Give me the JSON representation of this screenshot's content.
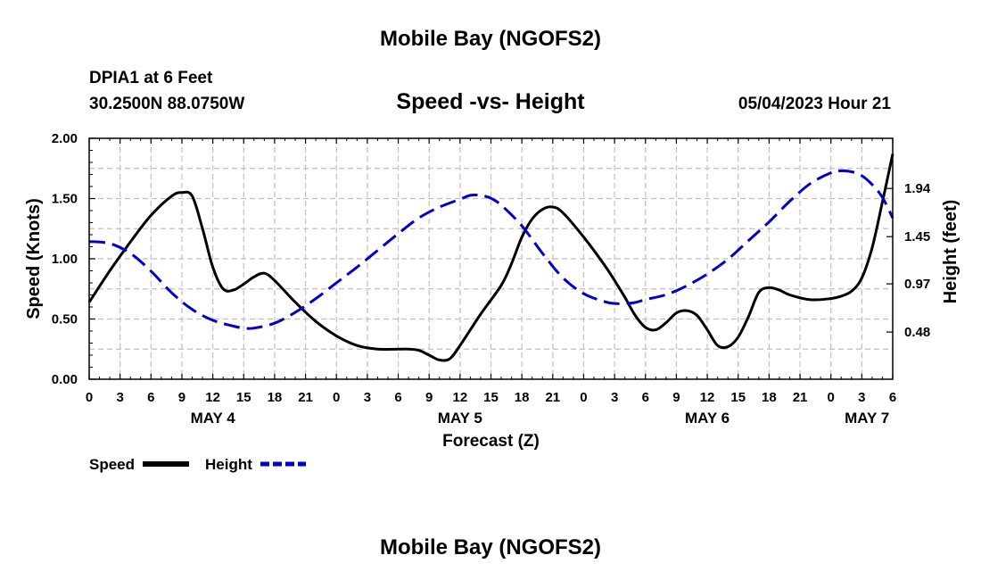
{
  "header": {
    "title": "Mobile Bay (NGOFS2)",
    "station": "DPIA1 at 6 Feet",
    "coords": "30.2500N  88.0750W",
    "subtitle": "Speed -vs- Height",
    "datetime": "05/04/2023 Hour 21"
  },
  "footer": {
    "title": "Mobile Bay (NGOFS2)"
  },
  "colors": {
    "speed": "#000000",
    "height": "#0000cc",
    "grid": "#c0c0c0"
  },
  "chart_data": {
    "type": "line",
    "title": "Speed -vs- Height",
    "xlabel": "Forecast (Z)",
    "ylabel": "Speed (Knots)",
    "y2label": "Height (feet)",
    "xlim": [
      0,
      78
    ],
    "ylim": [
      0,
      2.0
    ],
    "y2lim": [
      0.0,
      2.45
    ],
    "x_ticks": [
      0,
      3,
      6,
      9,
      12,
      15,
      18,
      21,
      24,
      27,
      30,
      33,
      36,
      39,
      42,
      45,
      48,
      51,
      54,
      57,
      60,
      63,
      66,
      69,
      72,
      75,
      78
    ],
    "x_tick_labels": [
      "0",
      "3",
      "6",
      "9",
      "12",
      "15",
      "18",
      "21",
      "0",
      "3",
      "6",
      "9",
      "12",
      "15",
      "18",
      "21",
      "0",
      "3",
      "6",
      "9",
      "12",
      "15",
      "18",
      "21",
      "0",
      "3",
      "6"
    ],
    "day_labels": [
      {
        "x": 12,
        "label": "MAY 4"
      },
      {
        "x": 36,
        "label": "MAY 5"
      },
      {
        "x": 60,
        "label": "MAY 6"
      },
      {
        "x": 75.5,
        "label": "MAY 7"
      }
    ],
    "y_ticks": [
      0,
      0.5,
      1.0,
      1.5,
      2.0
    ],
    "y_tick_labels": [
      "0.00",
      "0.50",
      "1.00",
      "1.50",
      "2.00"
    ],
    "y2_ticks": [
      0.48,
      0.97,
      1.45,
      1.94
    ],
    "y2_tick_labels": [
      "0.48",
      "0.97",
      "1.45",
      "1.94"
    ],
    "grid": true,
    "legend": {
      "position": "bottom-left",
      "entries": [
        "Speed",
        "Height"
      ]
    },
    "series": [
      {
        "name": "Speed",
        "axis": "left",
        "color": "#000000",
        "dash": "solid",
        "x": [
          0,
          2,
          4,
          6,
          8,
          9,
          10,
          11,
          12,
          13,
          14,
          15,
          16,
          17,
          18,
          20,
          22,
          24,
          26,
          28,
          30,
          31,
          32,
          33,
          34,
          35,
          36,
          38,
          40,
          41,
          42,
          43,
          44,
          45,
          46,
          48,
          50,
          51,
          52,
          53,
          54,
          55,
          56,
          57,
          58,
          59,
          60,
          61,
          62,
          63,
          64,
          65,
          66,
          67,
          68,
          70,
          72,
          73,
          74,
          75,
          76,
          77,
          78
        ],
        "values": [
          0.64,
          0.9,
          1.14,
          1.36,
          1.52,
          1.55,
          1.52,
          1.25,
          0.93,
          0.75,
          0.74,
          0.79,
          0.85,
          0.88,
          0.82,
          0.64,
          0.48,
          0.36,
          0.28,
          0.25,
          0.25,
          0.25,
          0.24,
          0.2,
          0.16,
          0.17,
          0.28,
          0.54,
          0.78,
          0.96,
          1.18,
          1.33,
          1.41,
          1.43,
          1.38,
          1.18,
          0.95,
          0.82,
          0.68,
          0.53,
          0.43,
          0.41,
          0.47,
          0.55,
          0.57,
          0.53,
          0.41,
          0.28,
          0.27,
          0.35,
          0.52,
          0.72,
          0.76,
          0.74,
          0.7,
          0.66,
          0.67,
          0.69,
          0.73,
          0.84,
          1.09,
          1.47,
          1.87
        ]
      },
      {
        "name": "Height",
        "axis": "right",
        "color": "#0000cc",
        "dash": "dashed",
        "x": [
          0,
          2,
          4,
          6,
          8,
          10,
          12,
          14,
          15,
          16,
          18,
          20,
          22,
          24,
          26,
          28,
          30,
          32,
          34,
          36,
          37,
          38,
          39,
          40,
          42,
          44,
          46,
          48,
          50,
          51,
          52,
          53,
          54,
          56,
          58,
          60,
          62,
          64,
          66,
          68,
          70,
          72,
          73,
          74,
          75,
          76,
          77,
          78
        ],
        "values": [
          1.4,
          1.38,
          1.28,
          1.1,
          0.88,
          0.71,
          0.6,
          0.54,
          0.52,
          0.52,
          0.57,
          0.68,
          0.82,
          0.98,
          1.14,
          1.31,
          1.48,
          1.64,
          1.75,
          1.83,
          1.87,
          1.87,
          1.84,
          1.77,
          1.56,
          1.28,
          1.03,
          0.87,
          0.79,
          0.77,
          0.77,
          0.78,
          0.81,
          0.86,
          0.95,
          1.07,
          1.22,
          1.41,
          1.6,
          1.81,
          1.99,
          2.1,
          2.12,
          2.11,
          2.07,
          1.98,
          1.85,
          1.64
        ]
      }
    ]
  }
}
